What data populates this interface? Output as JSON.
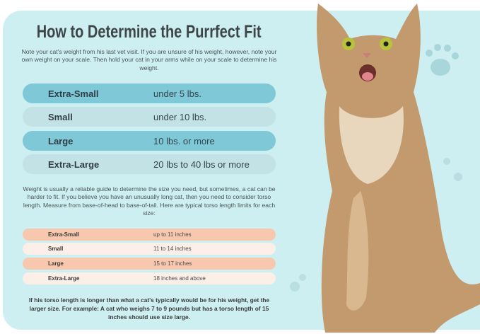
{
  "title": "How to Determine the Purrfect Fit",
  "intro": "Note your cat's weight from his last vet visit. If you are unsure of his weight, however, note your own weight on your scale. Then hold your cat in your arms while on your scale to determine his weight.",
  "weight_rows": [
    {
      "size": "Extra-Small",
      "value": "under 5 lbs."
    },
    {
      "size": "Small",
      "value": "under 10 lbs."
    },
    {
      "size": "Large",
      "value": "10 lbs. or more"
    },
    {
      "size": "Extra-Large",
      "value": "20 lbs to 40 lbs or more"
    }
  ],
  "torso_intro": "Weight is usually a reliable guide to determine the size you need, but sometimes, a cat can be harder to fit. If you believe you have an unusually long cat, then you need to consider torso length. Measure from base-of-head to base-of-tail. Here are typical torso length limits for each size:",
  "torso_rows": [
    {
      "size": "Extra-Small",
      "value": "up to 11 inches"
    },
    {
      "size": "Small",
      "value": "11 to 14 inches"
    },
    {
      "size": "Large",
      "value": "15 to 17 inches"
    },
    {
      "size": "Extra-Large",
      "value": "18 inches and above"
    }
  ],
  "note": "If his torso length is longer than what a cat's typically would be for his weight, get the larger size. For example: A cat who weighs 7 to 9 pounds but has a torso length of 15 inches should use size large.",
  "colors": {
    "panel": "#cdeff1",
    "weight_dark": "#7ec8d8",
    "weight_light": "#c3e2e5",
    "torso_dark": "#f8c8ae",
    "torso_light": "#fcefe7"
  }
}
